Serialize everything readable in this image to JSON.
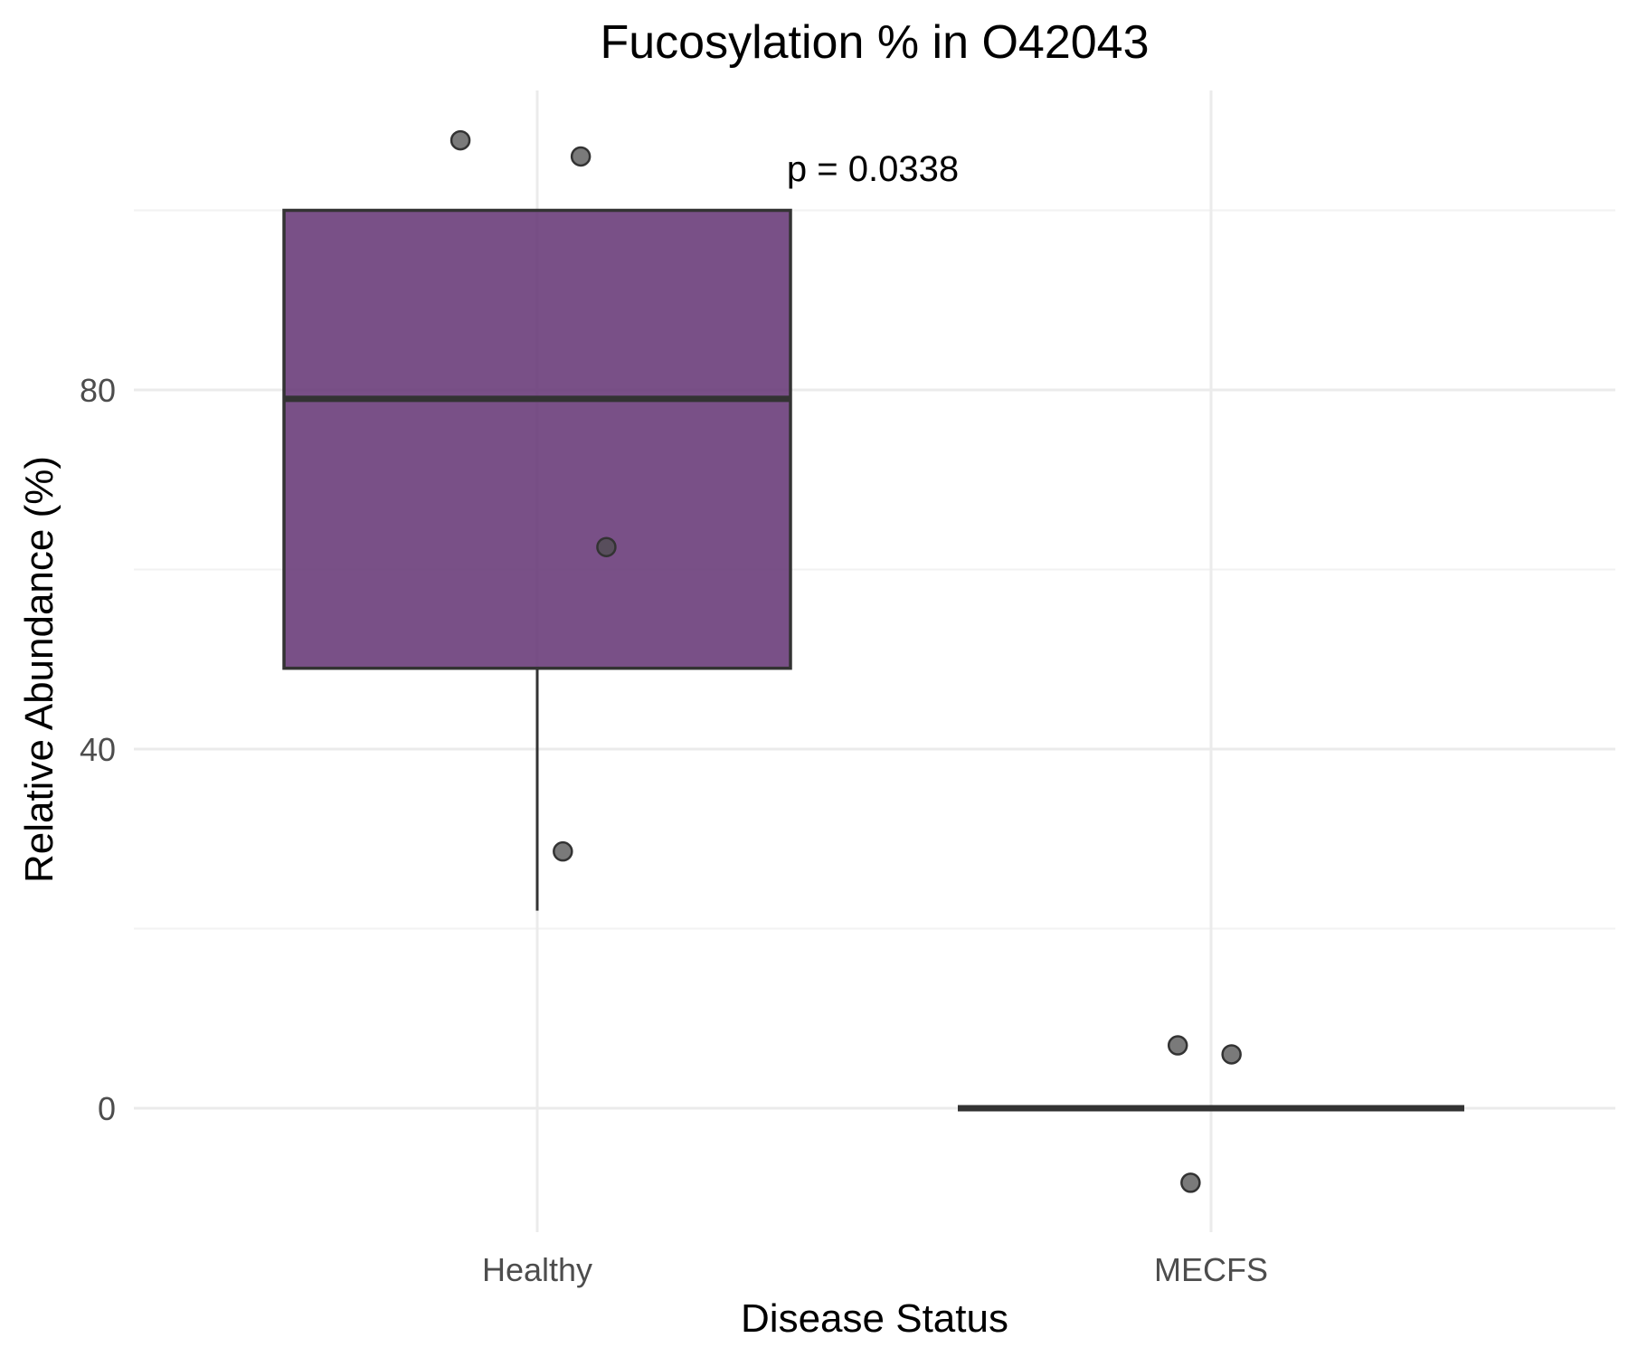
{
  "chart_data": {
    "type": "box",
    "title": "Fucosylation % in O42043",
    "xlabel": "Disease Status",
    "ylabel": "Relative Abundance (%)",
    "categories": [
      "Healthy",
      "MECFS"
    ],
    "y_ticks": [
      0,
      40,
      80
    ],
    "ylim": [
      -14,
      113
    ],
    "grid": true,
    "boxes": [
      {
        "category": "Healthy",
        "min": 22,
        "q1": 49,
        "median": 79,
        "q3": 100,
        "max": 100,
        "fill": "#6a3d7a",
        "outliers": []
      },
      {
        "category": "MECFS",
        "min": 0,
        "q1": 0,
        "median": 0,
        "q3": 0,
        "max": 0,
        "fill": "#6a3d7a",
        "outliers": []
      }
    ],
    "points": [
      {
        "category": "Healthy",
        "jitter": -0.3,
        "y": 107.8
      },
      {
        "category": "Healthy",
        "jitter": 0.17,
        "y": 106.0
      },
      {
        "category": "Healthy",
        "jitter": 0.27,
        "y": 62.5
      },
      {
        "category": "Healthy",
        "jitter": 0.1,
        "y": 28.6
      },
      {
        "category": "MECFS",
        "jitter": -0.13,
        "y": 7.0
      },
      {
        "category": "MECFS",
        "jitter": 0.08,
        "y": 6.0
      },
      {
        "category": "MECFS",
        "jitter": -0.08,
        "y": -8.3
      }
    ],
    "annotation": {
      "text": "p = 0.0338",
      "x_category_pos": 1.5,
      "y": 104
    }
  },
  "colors": {
    "box_fill": "#6a3d7a",
    "box_stroke": "#333333",
    "point_fill": "#4d4d4d",
    "point_stroke": "#333333"
  }
}
